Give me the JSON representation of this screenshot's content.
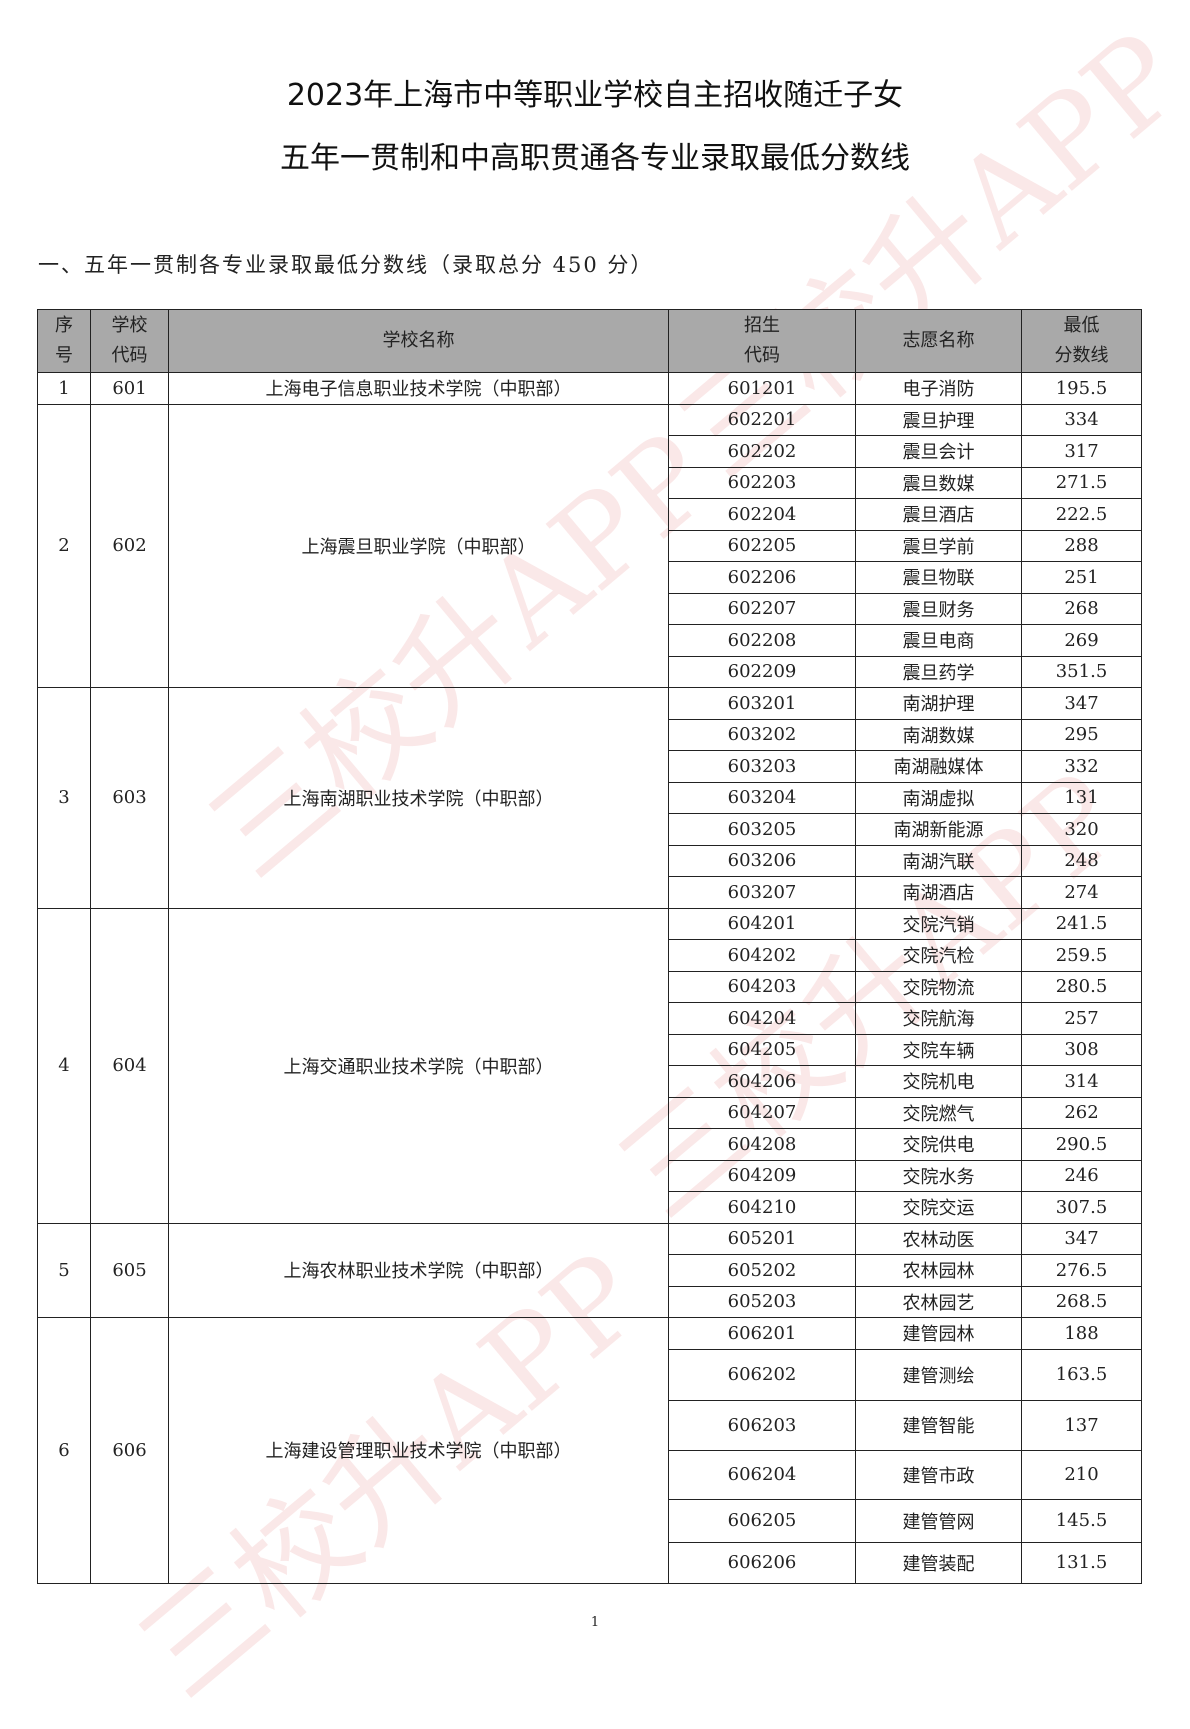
{
  "title_line1": "2023年上海市中等职业学校自主招收随迁子女",
  "title_line2": "五年一贯制和中高职贯通各专业录取最低分数线",
  "section_heading": "一、五年一贯制各专业录取最低分数线（录取总分 450 分）",
  "watermark": "三校升APP",
  "page_number": "1",
  "table": {
    "headers": [
      "序\n号",
      "学校\n代码",
      "学校名称",
      "招生\n代码",
      "志愿名称",
      "最低\n分数线"
    ],
    "groups": [
      {
        "no": "1",
        "school_code": "601",
        "school_name": "上海电子信息职业技术学院（中职部）",
        "rows": [
          [
            "601201",
            "电子消防",
            "195.5"
          ]
        ]
      },
      {
        "no": "2",
        "school_code": "602",
        "school_name": "上海震旦职业学院（中职部）",
        "rows": [
          [
            "602201",
            "震旦护理",
            "334"
          ],
          [
            "602202",
            "震旦会计",
            "317"
          ],
          [
            "602203",
            "震旦数媒",
            "271.5"
          ],
          [
            "602204",
            "震旦酒店",
            "222.5"
          ],
          [
            "602205",
            "震旦学前",
            "288"
          ],
          [
            "602206",
            "震旦物联",
            "251"
          ],
          [
            "602207",
            "震旦财务",
            "268"
          ],
          [
            "602208",
            "震旦电商",
            "269"
          ],
          [
            "602209",
            "震旦药学",
            "351.5"
          ]
        ]
      },
      {
        "no": "3",
        "school_code": "603",
        "school_name": "上海南湖职业技术学院（中职部）",
        "rows": [
          [
            "603201",
            "南湖护理",
            "347"
          ],
          [
            "603202",
            "南湖数媒",
            "295"
          ],
          [
            "603203",
            "南湖融媒体",
            "332"
          ],
          [
            "603204",
            "南湖虚拟",
            "131"
          ],
          [
            "603205",
            "南湖新能源",
            "320"
          ],
          [
            "603206",
            "南湖汽联",
            "248"
          ],
          [
            "603207",
            "南湖酒店",
            "274"
          ]
        ]
      },
      {
        "no": "4",
        "school_code": "604",
        "school_name": "上海交通职业技术学院（中职部）",
        "rows": [
          [
            "604201",
            "交院汽销",
            "241.5"
          ],
          [
            "604202",
            "交院汽检",
            "259.5"
          ],
          [
            "604203",
            "交院物流",
            "280.5"
          ],
          [
            "604204",
            "交院航海",
            "257"
          ],
          [
            "604205",
            "交院车辆",
            "308"
          ],
          [
            "604206",
            "交院机电",
            "314"
          ],
          [
            "604207",
            "交院燃气",
            "262"
          ],
          [
            "604208",
            "交院供电",
            "290.5"
          ],
          [
            "604209",
            "交院水务",
            "246"
          ],
          [
            "604210",
            "交院交运",
            "307.5"
          ]
        ]
      },
      {
        "no": "5",
        "school_code": "605",
        "school_name": "上海农林职业技术学院（中职部）",
        "rows": [
          [
            "605201",
            "农林动医",
            "347"
          ],
          [
            "605202",
            "农林园林",
            "276.5"
          ],
          [
            "605203",
            "农林园艺",
            "268.5"
          ]
        ]
      },
      {
        "no": "6",
        "school_code": "606",
        "school_name": "上海建设管理职业技术学院（中职部）",
        "rows": [
          [
            "606201",
            "建管园林",
            "188"
          ],
          [
            "606202",
            "建管测绘",
            "163.5"
          ],
          [
            "606203",
            "建管智能",
            "137"
          ],
          [
            "606204",
            "建管市政",
            "210"
          ],
          [
            "606205",
            "建管管网",
            "145.5"
          ],
          [
            "606206",
            "建管装配",
            "131.5"
          ]
        ]
      }
    ]
  }
}
